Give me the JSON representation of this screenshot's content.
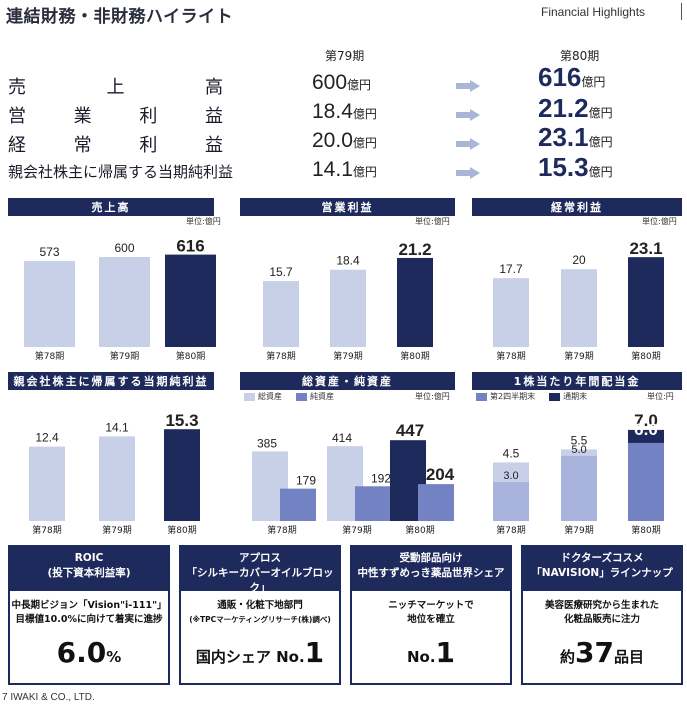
{
  "header": {
    "title": "連結財務・非財務ハイライト",
    "subtitle": "Financial Highlights"
  },
  "highlights": {
    "period_prev": "第79期",
    "period_curr": "第80期",
    "unit_oku": "億円",
    "rows": [
      {
        "label": "売上高",
        "prev": "600",
        "curr": "616"
      },
      {
        "label": "営業利益",
        "prev": "18.4",
        "curr": "21.2"
      },
      {
        "label": "経常利益",
        "prev": "20.0",
        "curr": "23.1"
      },
      {
        "label": "親会社株主に帰属する当期純利益",
        "prev": "14.1",
        "curr": "15.3"
      }
    ]
  },
  "charts": [
    {
      "title": "売上高",
      "unit": "単位:億円",
      "categories": [
        "第78期",
        "第79期",
        "第80期"
      ],
      "values": [
        573,
        600,
        616
      ],
      "ylim": [
        0,
        700
      ]
    },
    {
      "title": "営業利益",
      "unit": "単位:億円",
      "categories": [
        "第78期",
        "第79期",
        "第80期"
      ],
      "values": [
        15.7,
        18.4,
        21.2
      ],
      "ylim": [
        0,
        25
      ]
    },
    {
      "title": "経常利益",
      "unit": "単位:億円",
      "categories": [
        "第78期",
        "第79期",
        "第80期"
      ],
      "values": [
        17.7,
        20.0,
        23.1
      ],
      "ylim": [
        0,
        27
      ]
    },
    {
      "title": "親会社株主に帰属する当期純利益",
      "unit": "",
      "categories": [
        "第78期",
        "第79期",
        "第80期"
      ],
      "values": [
        12.4,
        14.1,
        15.3
      ],
      "ylim": [
        0,
        18
      ]
    },
    {
      "title": "総資産・純資産",
      "unit": "単位:億円",
      "legend": [
        "総資産",
        "純資産"
      ],
      "categories": [
        "第78期",
        "第79期",
        "第80期"
      ],
      "series": [
        {
          "name": "総資産",
          "values": [
            385,
            414,
            447
          ]
        },
        {
          "name": "純資産",
          "values": [
            179,
            192,
            204
          ]
        }
      ],
      "ylim": [
        0,
        520
      ]
    },
    {
      "title": "1株当たり年間配当金",
      "unit": "単位:円",
      "legend": [
        "第2四半期末",
        "通期末"
      ],
      "categories": [
        "第78期",
        "第79期",
        "第80期"
      ],
      "series": [
        {
          "name": "第2四半期末",
          "values": [
            3.0,
            5.0,
            6.0
          ]
        },
        {
          "name": "通期末",
          "values": [
            4.5,
            5.5,
            7.0
          ]
        }
      ],
      "ylim": [
        0,
        8.3
      ]
    }
  ],
  "chart_data": [
    {
      "type": "bar",
      "title": "売上高",
      "unit": "単位:億円",
      "categories": [
        "第78期",
        "第79期",
        "第80期"
      ],
      "values": [
        573,
        600,
        616
      ],
      "ylim": [
        0,
        700
      ]
    },
    {
      "type": "bar",
      "title": "営業利益",
      "unit": "単位:億円",
      "categories": [
        "第78期",
        "第79期",
        "第80期"
      ],
      "values": [
        15.7,
        18.4,
        21.2
      ],
      "ylim": [
        0,
        25
      ]
    },
    {
      "type": "bar",
      "title": "経常利益",
      "unit": "単位:億円",
      "categories": [
        "第78期",
        "第79期",
        "第80期"
      ],
      "values": [
        17.7,
        20.0,
        23.1
      ],
      "ylim": [
        0,
        27
      ]
    },
    {
      "type": "bar",
      "title": "親会社株主に帰属する当期純利益",
      "categories": [
        "第78期",
        "第79期",
        "第80期"
      ],
      "values": [
        12.4,
        14.1,
        15.3
      ],
      "ylim": [
        0,
        18
      ]
    },
    {
      "type": "bar",
      "title": "総資産・純資産",
      "unit": "単位:億円",
      "categories": [
        "第78期",
        "第79期",
        "第80期"
      ],
      "series": [
        {
          "name": "総資産",
          "values": [
            385,
            414,
            447
          ]
        },
        {
          "name": "純資産",
          "values": [
            179,
            192,
            204
          ]
        }
      ],
      "ylim": [
        0,
        520
      ]
    },
    {
      "type": "bar",
      "title": "1株当たり年間配当金",
      "unit": "単位:円",
      "categories": [
        "第78期",
        "第79期",
        "第80期"
      ],
      "series": [
        {
          "name": "第2四半期末",
          "values": [
            3.0,
            5.0,
            6.0
          ]
        },
        {
          "name": "通期末",
          "values": [
            4.5,
            5.5,
            7.0
          ]
        }
      ],
      "ylim": [
        0,
        8.3
      ]
    }
  ],
  "boxes": [
    {
      "title": "ROIC",
      "subtitle": "(投下資本利益率)",
      "desc1": "中長期ビジョン「Vision\"i-111\"」",
      "desc2": "目標値10.0%に向けて着実に進捗",
      "big_value": "6.0",
      "big_suffix": "%"
    },
    {
      "title": "アプロス",
      "subtitle": "「シルキーカバーオイルブロック」",
      "desc1": "通販・化粧下地部門",
      "desc2": "(※TPCマーケティングリサーチ(株)調べ)",
      "big_prefix": "国内シェア No.",
      "big_value": "1"
    },
    {
      "title": "受動部品向け",
      "subtitle": "中性すずめっき薬品世界シェア",
      "desc1": "ニッチマーケットで",
      "desc2": "地位を確立",
      "big_prefix": "No.",
      "big_value": "1"
    },
    {
      "title": "ドクターズコスメ",
      "subtitle": "「NAVISION」ラインナップ",
      "desc1": "美容医療研究から生まれた",
      "desc2": "化粧品販売に注力",
      "big_prefix": "約",
      "big_value": "37",
      "big_suffix": "品目"
    }
  ],
  "footer": {
    "text": "7 IWAKI & CO., LTD."
  },
  "colors": {
    "navy": "#1f2a5c",
    "light_bar": "#c8d0e8",
    "mid_bar": "#7382c2",
    "arrow": "#a9b6d6"
  }
}
